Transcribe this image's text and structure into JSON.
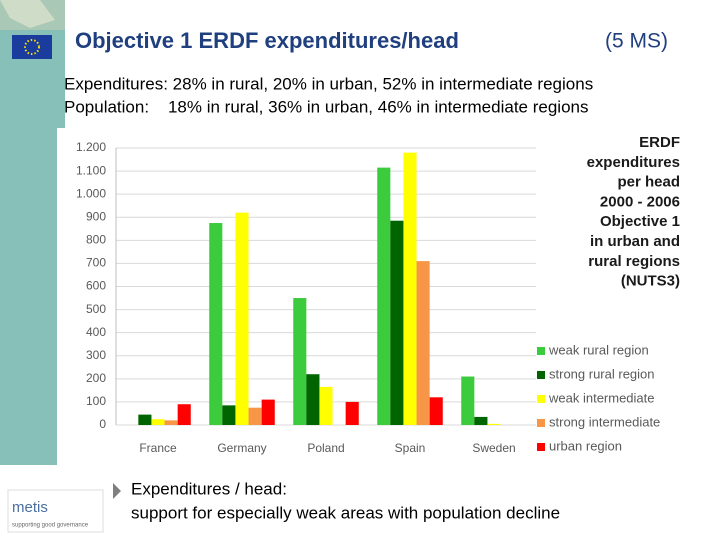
{
  "slide": {
    "title": "Objective 1 ERDF expenditures/head",
    "title_note": "(5 MS)",
    "lines": [
      "Expenditures: 28% in rural, 20% in urban, 52% in intermediate regions",
      "Population:    18% in rural, 36% in urban, 46% in intermediate regions"
    ],
    "bullet": [
      "Expenditures / head:",
      "support for especially weak areas with population decline"
    ],
    "logo": "metis",
    "logo_tagline": "supporting good governance"
  },
  "chart_data": {
    "type": "bar",
    "annotation": [
      "ERDF",
      "expenditures",
      "per head",
      "2000 - 2006",
      "Objective 1",
      "in urban and",
      "rural regions",
      "(NUTS3)"
    ],
    "categories": [
      "France",
      "Germany",
      "Poland",
      "Spain",
      "Sweden"
    ],
    "series": [
      {
        "name": "weak rural region",
        "color": "#3ccb3c",
        "values": [
          null,
          875,
          550,
          1115,
          210
        ]
      },
      {
        "name": "strong rural region",
        "color": "#006400",
        "values": [
          45,
          85,
          220,
          885,
          35
        ]
      },
      {
        "name": "weak intermediate",
        "color": "#ffff00",
        "values": [
          25,
          920,
          165,
          1180,
          5
        ]
      },
      {
        "name": "strong intermediate",
        "color": "#f79646",
        "values": [
          20,
          75,
          null,
          710,
          null
        ]
      },
      {
        "name": "urban region",
        "color": "#ff0000",
        "values": [
          90,
          110,
          100,
          120,
          null
        ]
      }
    ],
    "ylim": [
      0,
      1200
    ],
    "yticks": [
      0,
      100,
      200,
      300,
      400,
      500,
      600,
      700,
      800,
      900,
      {
        "value": 1000,
        "label": "1.000"
      },
      {
        "value": 1100,
        "label": "1.100"
      },
      {
        "value": 1200,
        "label": "1.200"
      }
    ],
    "grid": true,
    "legend": "bottom-right"
  }
}
